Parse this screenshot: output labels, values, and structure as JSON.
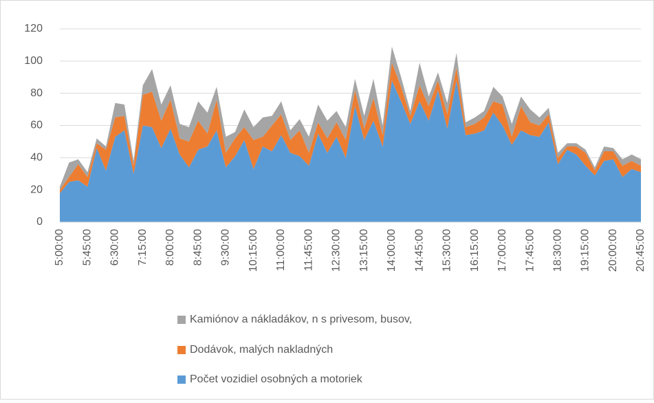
{
  "chart_data": {
    "type": "stacked_area",
    "categories": [
      "5:00:00",
      null,
      null,
      "5:45:00",
      null,
      null,
      "6:30:00",
      null,
      null,
      "7:15:00",
      null,
      null,
      "8:00:00",
      null,
      null,
      "8:45:00",
      null,
      null,
      "9:30:00",
      null,
      null,
      "10:15:00",
      null,
      null,
      "11:00:00",
      null,
      null,
      "11:45:00",
      null,
      null,
      "12:30:00",
      null,
      null,
      "13:15:00",
      null,
      null,
      "14:00:00",
      null,
      null,
      "14:45:00",
      null,
      null,
      "15:30:00",
      null,
      null,
      "16:15:00",
      null,
      null,
      "17:00:00",
      null,
      null,
      "17:45:00",
      null,
      null,
      "18:30:00",
      null,
      null,
      "19:15:00",
      null,
      null,
      "20:00:00",
      null,
      null,
      "20:45:00"
    ],
    "series": [
      {
        "name": "Počet  vozidiel osobných a motoriek",
        "color": "#5b9bd5",
        "values": [
          18,
          25,
          26,
          22,
          46,
          32,
          53,
          57,
          30,
          60,
          59,
          46,
          58,
          42,
          34,
          45,
          47,
          57,
          34,
          41,
          51,
          33,
          47,
          44,
          54,
          43,
          41,
          35,
          55,
          43,
          53,
          40,
          72,
          51,
          63,
          47,
          88,
          75,
          61,
          75,
          63,
          82,
          58,
          88,
          54,
          55,
          57,
          68,
          60,
          48,
          57,
          54,
          53,
          62,
          36,
          45,
          42,
          35,
          29,
          38,
          39,
          28,
          33,
          31
        ]
      },
      {
        "name": "Dodávok, malých nakladných",
        "color": "#ed7d31",
        "values": [
          2,
          3,
          10,
          6,
          3,
          13,
          12,
          9,
          5,
          19,
          22,
          17,
          18,
          10,
          16,
          18,
          8,
          19,
          9,
          11,
          8,
          18,
          6,
          16,
          13,
          8,
          16,
          8,
          7,
          9,
          9,
          11,
          10,
          7,
          14,
          7,
          11,
          9,
          5,
          10,
          9,
          6,
          9,
          8,
          5,
          6,
          8,
          7,
          13,
          5,
          15,
          8,
          7,
          5,
          4,
          2,
          5,
          8,
          3,
          6,
          5,
          7,
          5,
          4
        ]
      },
      {
        "name": "Kamiónov a nákladákov, n s privesom, busov,",
        "color": "#a5a5a5",
        "values": [
          2,
          9,
          3,
          3,
          3,
          2,
          9,
          7,
          3,
          6,
          14,
          10,
          9,
          9,
          9,
          12,
          13,
          8,
          10,
          4,
          11,
          8,
          12,
          6,
          8,
          6,
          7,
          10,
          11,
          11,
          7,
          8,
          7,
          8,
          12,
          6,
          10,
          6,
          3,
          14,
          6,
          5,
          7,
          9,
          3,
          4,
          4,
          9,
          5,
          8,
          6,
          8,
          5,
          4,
          3,
          2,
          2,
          2,
          2,
          3,
          2,
          4,
          4,
          4
        ]
      }
    ],
    "ylim": [
      0,
      120
    ],
    "yticks": [
      0,
      20,
      40,
      60,
      80,
      100,
      120
    ],
    "grid": true,
    "legend": "bottom"
  }
}
